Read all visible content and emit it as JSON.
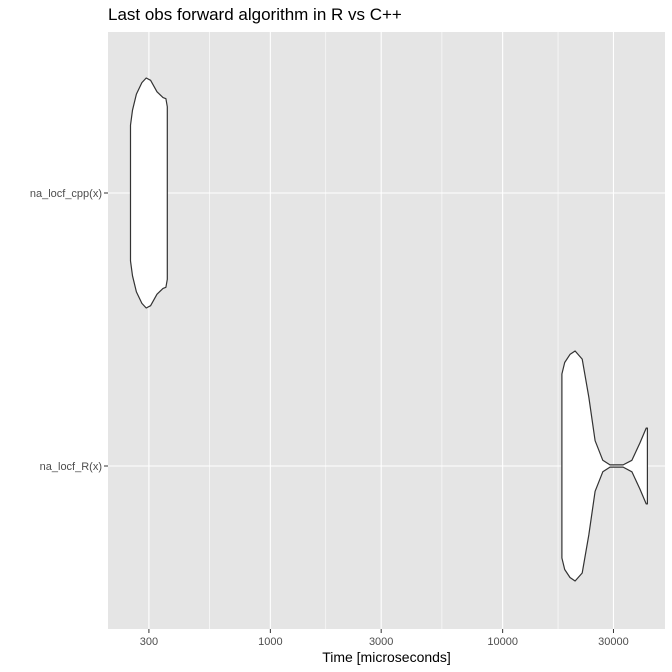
{
  "chart_data": {
    "type": "violin",
    "title": "Last obs forward algorithm in R vs C++",
    "xlabel": "Time [microseconds]",
    "ylabel": "",
    "x_scale": "log10",
    "xlim": [
      200,
      50000
    ],
    "x_ticks": [
      300,
      1000,
      3000,
      10000,
      30000
    ],
    "x_tick_labels": [
      "300",
      "1000",
      "3000",
      "10000",
      "30000"
    ],
    "categories": [
      "na_locf_cpp(x)",
      "na_locf_R(x)"
    ],
    "grid": true,
    "legend": "none",
    "series": [
      {
        "category": "na_locf_cpp(x)",
        "range": [
          250,
          360
        ],
        "shape": "single mode around 290-300",
        "density": [
          {
            "x": 250,
            "d": 0.59
          },
          {
            "x": 255,
            "d": 0.72
          },
          {
            "x": 265,
            "d": 0.86
          },
          {
            "x": 280,
            "d": 0.96
          },
          {
            "x": 292,
            "d": 1.0
          },
          {
            "x": 305,
            "d": 0.98
          },
          {
            "x": 325,
            "d": 0.88
          },
          {
            "x": 345,
            "d": 0.83
          },
          {
            "x": 355,
            "d": 0.82
          },
          {
            "x": 360,
            "d": 0.75
          }
        ]
      },
      {
        "category": "na_locf_R(x)",
        "range": [
          18000,
          42000
        ],
        "shape": "bimodal: main mode ~21000, minor mode ~40000",
        "density": [
          {
            "x": 18000,
            "d": 0.8
          },
          {
            "x": 18500,
            "d": 0.9
          },
          {
            "x": 19500,
            "d": 0.97
          },
          {
            "x": 20500,
            "d": 1.0
          },
          {
            "x": 22000,
            "d": 0.93
          },
          {
            "x": 23500,
            "d": 0.6
          },
          {
            "x": 25000,
            "d": 0.22
          },
          {
            "x": 27000,
            "d": 0.05
          },
          {
            "x": 29000,
            "d": 0.01
          },
          {
            "x": 33000,
            "d": 0.01
          },
          {
            "x": 36000,
            "d": 0.05
          },
          {
            "x": 39000,
            "d": 0.2
          },
          {
            "x": 41500,
            "d": 0.33
          },
          {
            "x": 42000,
            "d": 0.33
          }
        ]
      }
    ]
  },
  "colors": {
    "panel": "#e5e5e5",
    "grid_major": "#ffffff",
    "violin_fill": "#ffffff",
    "violin_stroke": "#333333",
    "tick_text": "#4d4d4d"
  }
}
